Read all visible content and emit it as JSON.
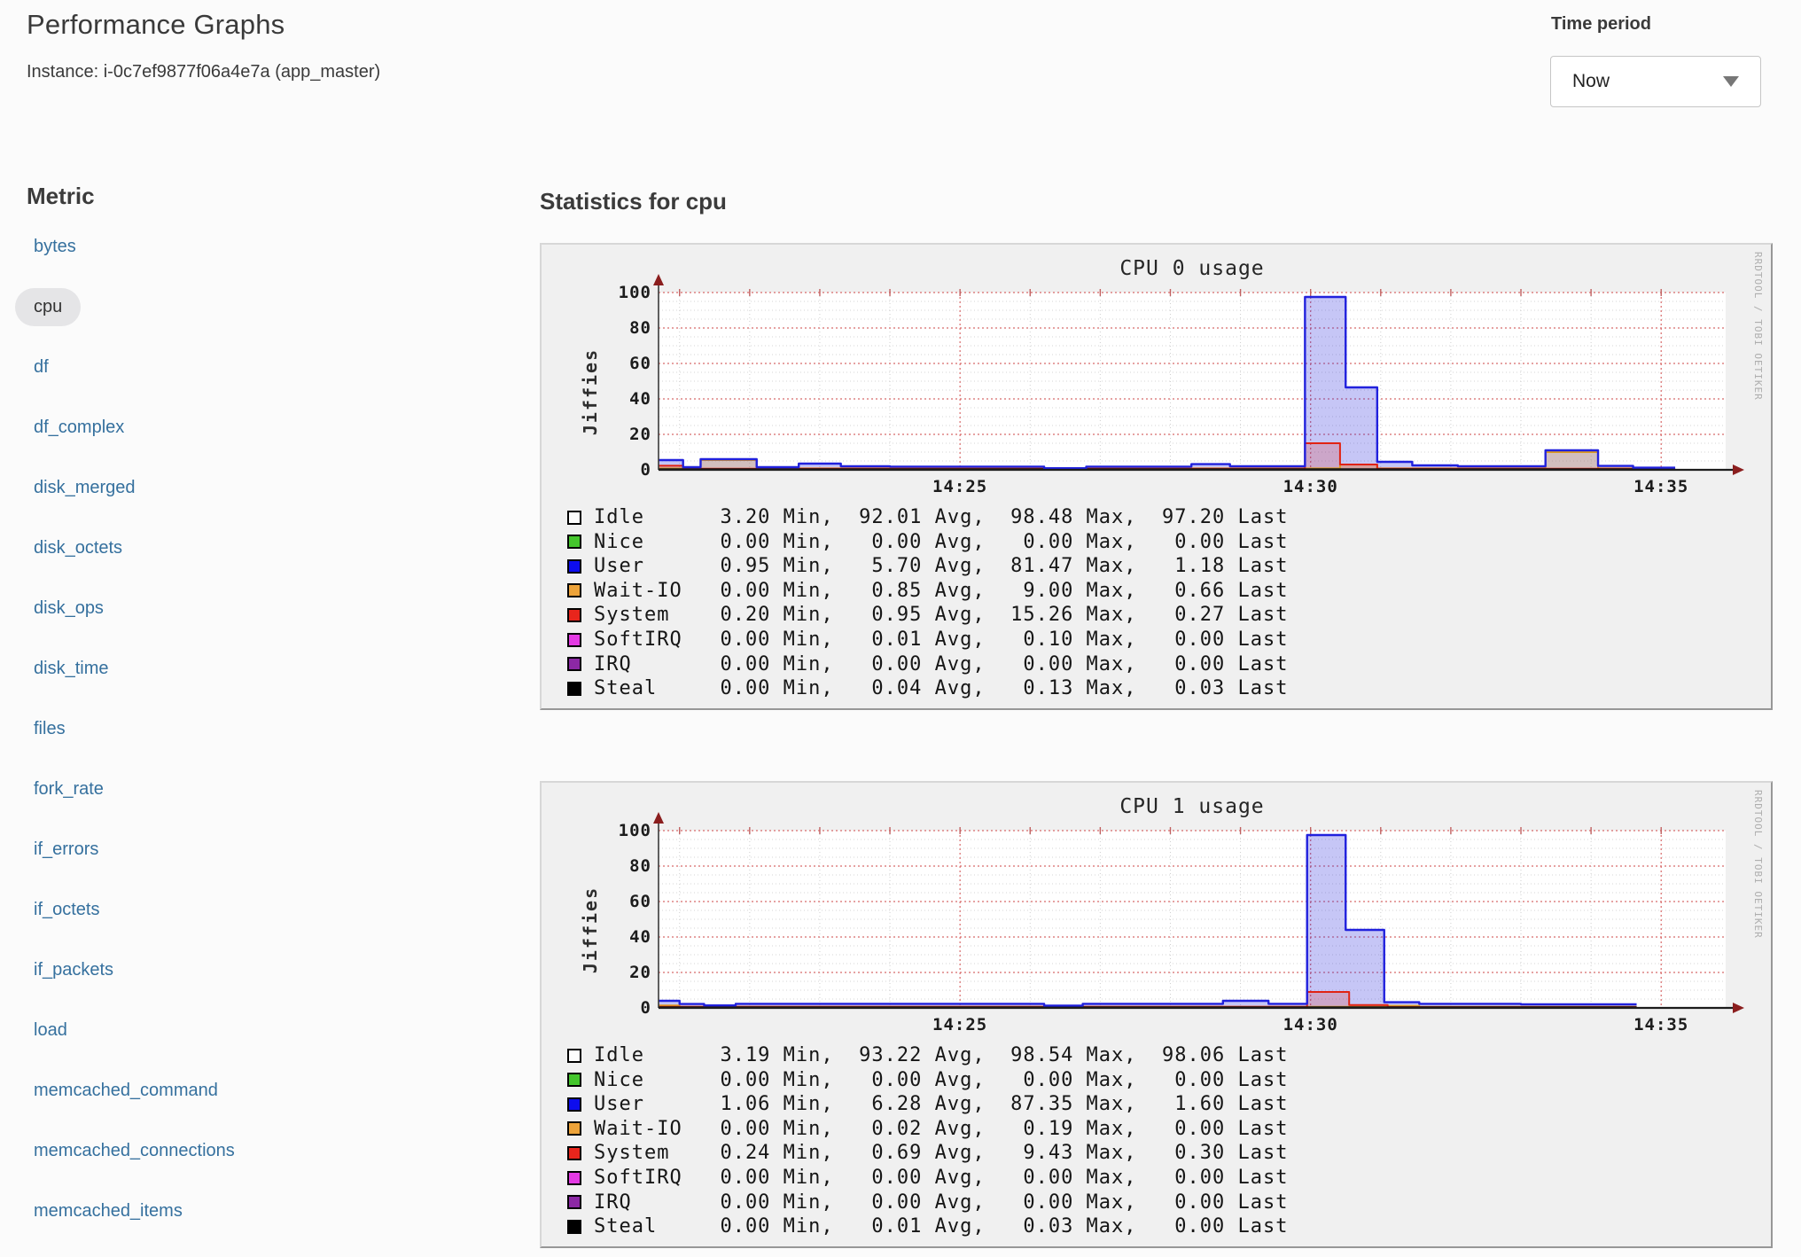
{
  "header": {
    "title": "Performance Graphs",
    "instance": "Instance: i-0c7ef9877f06a4e7a (app_master)",
    "time_period_label": "Time period",
    "time_period_value": "Now"
  },
  "sidebar": {
    "heading": "Metric",
    "selected": "cpu",
    "items": [
      "bytes",
      "cpu",
      "df",
      "df_complex",
      "disk_merged",
      "disk_octets",
      "disk_ops",
      "disk_time",
      "files",
      "fork_rate",
      "if_errors",
      "if_octets",
      "if_packets",
      "load",
      "memcached_command",
      "memcached_connections",
      "memcached_items"
    ]
  },
  "main": {
    "heading": "Statistics for cpu",
    "watermark": "RRDTOOL / TOBI OETIKER"
  },
  "chart_data": [
    {
      "type": "area",
      "title": "CPU 0 usage",
      "ylabel": "Jiffies",
      "ylim": [
        0,
        100
      ],
      "y_major": 20,
      "y_minor": 5,
      "x_domain": [
        20.7,
        35.92
      ],
      "x_major": [
        25,
        30,
        35
      ],
      "x_minor_step": 1,
      "xtick_labels": [
        "14:25",
        "14:30",
        "14:35"
      ],
      "grid": true,
      "legend_position": "bottom",
      "series": [
        {
          "name": "User",
          "color": "#2121dd",
          "fill": "rgba(45,45,220,0.27)",
          "width": 2.4,
          "steps": [
            [
              20.7,
              5.5
            ],
            [
              21.05,
              1.5
            ],
            [
              21.3,
              6
            ],
            [
              22.1,
              1.5
            ],
            [
              22.7,
              3.5
            ],
            [
              23.3,
              2
            ],
            [
              24,
              1.8
            ],
            [
              26.2,
              0.9
            ],
            [
              26.8,
              1.8
            ],
            [
              28.3,
              3.2
            ],
            [
              28.85,
              2
            ],
            [
              29.92,
              97.5
            ],
            [
              30.5,
              46.5
            ],
            [
              30.95,
              4.5
            ],
            [
              31.45,
              2.5
            ],
            [
              32.1,
              2
            ],
            [
              33.35,
              11
            ],
            [
              34.1,
              2.2
            ],
            [
              34.6,
              1.2
            ]
          ],
          "end": 35.2
        },
        {
          "name": "Wait-IO",
          "color": "#dd9a20",
          "fill": "rgba(240,176,60,0.30)",
          "width": 2,
          "steps": [
            [
              20.7,
              0.8
            ],
            [
              21.3,
              5.5
            ],
            [
              22.1,
              0.8
            ],
            [
              30.42,
              3
            ],
            [
              30.95,
              0.8
            ],
            [
              33.35,
              10
            ],
            [
              34.1,
              0.8
            ]
          ],
          "end": 35.2
        },
        {
          "name": "System",
          "color": "#e12313",
          "fill": "rgba(230,40,25,0.20)",
          "width": 2,
          "steps": [
            [
              20.7,
              2.3
            ],
            [
              21.05,
              0.6
            ],
            [
              29.92,
              15
            ],
            [
              30.42,
              3
            ],
            [
              30.95,
              0.6
            ]
          ],
          "end": 35.2
        },
        {
          "name": "Steal",
          "color": "#151515",
          "fill": "none",
          "width": 1.6,
          "steps": [
            [
              20.7,
              0.45
            ]
          ],
          "end": 35.2
        }
      ],
      "legend": [
        {
          "name": "Idle",
          "color": "#fdfdfd",
          "min": "3.20",
          "avg": "92.01",
          "max": "98.48",
          "last": "97.20"
        },
        {
          "name": "Nice",
          "color": "#44c62c",
          "min": "0.00",
          "avg": "0.00",
          "max": "0.00",
          "last": "0.00"
        },
        {
          "name": "User",
          "color": "#0d0dee",
          "min": "0.95",
          "avg": "5.70",
          "max": "81.47",
          "last": "1.18"
        },
        {
          "name": "Wait-IO",
          "color": "#eda339",
          "min": "0.00",
          "avg": "0.85",
          "max": "9.00",
          "last": "0.66"
        },
        {
          "name": "System",
          "color": "#e8251c",
          "min": "0.20",
          "avg": "0.95",
          "max": "15.26",
          "last": "0.27"
        },
        {
          "name": "SoftIRQ",
          "color": "#e43ae4",
          "min": "0.00",
          "avg": "0.01",
          "max": "0.10",
          "last": "0.00"
        },
        {
          "name": "IRQ",
          "color": "#8c28a5",
          "min": "0.00",
          "avg": "0.00",
          "max": "0.00",
          "last": "0.00"
        },
        {
          "name": "Steal",
          "color": "#000000",
          "min": "0.00",
          "avg": "0.04",
          "max": "0.13",
          "last": "0.03"
        }
      ],
      "stat_labels": [
        "Min",
        "Avg",
        "Max",
        "Last"
      ]
    },
    {
      "type": "area",
      "title": "CPU 1 usage",
      "ylabel": "Jiffies",
      "ylim": [
        0,
        100
      ],
      "y_major": 20,
      "y_minor": 5,
      "x_domain": [
        20.7,
        35.92
      ],
      "x_major": [
        25,
        30,
        35
      ],
      "x_minor_step": 1,
      "xtick_labels": [
        "14:25",
        "14:30",
        "14:35"
      ],
      "grid": true,
      "legend_position": "bottom",
      "series": [
        {
          "name": "User",
          "color": "#2121dd",
          "fill": "rgba(45,45,220,0.27)",
          "width": 2.4,
          "steps": [
            [
              20.7,
              4
            ],
            [
              21,
              2.2
            ],
            [
              21.35,
              1.4
            ],
            [
              21.8,
              2.3
            ],
            [
              26.2,
              1.3
            ],
            [
              26.75,
              2.3
            ],
            [
              28.75,
              4
            ],
            [
              29.4,
              2.3
            ],
            [
              29.95,
              97.5
            ],
            [
              30.5,
              44
            ],
            [
              31.05,
              3.2
            ],
            [
              31.55,
              2.3
            ],
            [
              33,
              2
            ]
          ],
          "end": 34.65
        },
        {
          "name": "Wait-IO",
          "color": "#dd9a20",
          "fill": "rgba(240,176,60,0.30)",
          "width": 2,
          "steps": [
            [
              20.7,
              1.4
            ],
            [
              21,
              0.6
            ],
            [
              31.05,
              1.2
            ],
            [
              31.55,
              0.6
            ]
          ],
          "end": 34.65
        },
        {
          "name": "System",
          "color": "#e12313",
          "fill": "rgba(230,40,25,0.20)",
          "width": 2,
          "steps": [
            [
              20.7,
              0.6
            ],
            [
              29.95,
              9
            ],
            [
              30.55,
              1.6
            ],
            [
              31.1,
              0.5
            ]
          ],
          "end": 34.65
        },
        {
          "name": "Steal",
          "color": "#151515",
          "fill": "none",
          "width": 1.6,
          "steps": [
            [
              20.7,
              0.45
            ]
          ],
          "end": 34.65
        }
      ],
      "legend": [
        {
          "name": "Idle",
          "color": "#fdfdfd",
          "min": "3.19",
          "avg": "93.22",
          "max": "98.54",
          "last": "98.06"
        },
        {
          "name": "Nice",
          "color": "#44c62c",
          "min": "0.00",
          "avg": "0.00",
          "max": "0.00",
          "last": "0.00"
        },
        {
          "name": "User",
          "color": "#0d0dee",
          "min": "1.06",
          "avg": "6.28",
          "max": "87.35",
          "last": "1.60"
        },
        {
          "name": "Wait-IO",
          "color": "#eda339",
          "min": "0.00",
          "avg": "0.02",
          "max": "0.19",
          "last": "0.00"
        },
        {
          "name": "System",
          "color": "#e8251c",
          "min": "0.24",
          "avg": "0.69",
          "max": "9.43",
          "last": "0.30"
        },
        {
          "name": "SoftIRQ",
          "color": "#e43ae4",
          "min": "0.00",
          "avg": "0.00",
          "max": "0.00",
          "last": "0.00"
        },
        {
          "name": "IRQ",
          "color": "#8c28a5",
          "min": "0.00",
          "avg": "0.00",
          "max": "0.00",
          "last": "0.00"
        },
        {
          "name": "Steal",
          "color": "#000000",
          "min": "0.00",
          "avg": "0.01",
          "max": "0.03",
          "last": "0.00"
        }
      ],
      "stat_labels": [
        "Min",
        "Avg",
        "Max",
        "Last"
      ]
    }
  ]
}
